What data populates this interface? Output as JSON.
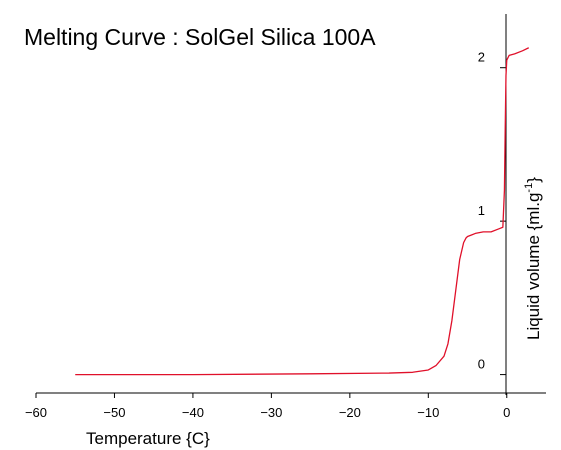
{
  "chart_data": {
    "type": "line",
    "title": "Melting Curve : SolGel Silica 100A",
    "xlabel": "Temperature  {C}",
    "ylabel": "Liquid  volume  {ml.g",
    "ylabel_superscript": "-1",
    "ylabel_close": "}",
    "xlim": [
      -60,
      5
    ],
    "ylim": [
      -0.12,
      2.35
    ],
    "x_ticks": [
      -60,
      -50,
      -40,
      -30,
      -20,
      -10,
      0
    ],
    "x_tick_labels": [
      "−60",
      "−50",
      "−40",
      "−30",
      "−20",
      "−10",
      "0"
    ],
    "y_ticks": [
      0,
      1,
      2
    ],
    "y_tick_labels": [
      "0",
      "1",
      "2"
    ],
    "grid": false,
    "legend": "none",
    "series": [
      {
        "color": "#e0102a",
        "x": [
          -55,
          -40,
          -25,
          -15,
          -12,
          -10,
          -9,
          -8,
          -7.5,
          -7,
          -6.5,
          -6,
          -5.5,
          -5.2,
          -5,
          -4.5,
          -4,
          -3,
          -2,
          -1,
          -0.5,
          -0.3,
          -0.2,
          -0.1,
          0,
          0.3,
          1,
          2,
          2.8
        ],
        "y": [
          0.0,
          0.0,
          0.005,
          0.01,
          0.015,
          0.03,
          0.06,
          0.12,
          0.2,
          0.35,
          0.55,
          0.75,
          0.86,
          0.89,
          0.9,
          0.91,
          0.92,
          0.93,
          0.93,
          0.95,
          0.96,
          1.2,
          1.6,
          1.95,
          2.05,
          2.08,
          2.09,
          2.11,
          2.13
        ]
      }
    ]
  }
}
